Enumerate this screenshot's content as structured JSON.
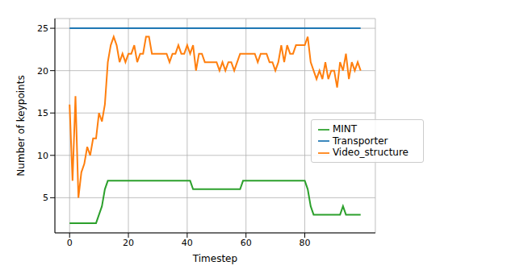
{
  "chart_data": {
    "type": "line",
    "x_label": "Timestep",
    "y_label": "Number of keypoints",
    "x": [
      0,
      1,
      2,
      3,
      4,
      5,
      6,
      7,
      8,
      9,
      10,
      11,
      12,
      13,
      14,
      15,
      16,
      17,
      18,
      19,
      20,
      21,
      22,
      23,
      24,
      25,
      26,
      27,
      28,
      29,
      30,
      31,
      32,
      33,
      34,
      35,
      36,
      37,
      38,
      39,
      40,
      41,
      42,
      43,
      44,
      45,
      46,
      47,
      48,
      49,
      50,
      51,
      52,
      53,
      54,
      55,
      56,
      57,
      58,
      59,
      60,
      61,
      62,
      63,
      64,
      65,
      66,
      67,
      68,
      69,
      70,
      71,
      72,
      73,
      74,
      75,
      76,
      77,
      78,
      79,
      80,
      81,
      82,
      83,
      84,
      85,
      86,
      87,
      88,
      89,
      90,
      91,
      92,
      93,
      94,
      95,
      96,
      97,
      98,
      99
    ],
    "series": [
      {
        "name": "Transporter",
        "color": "#1f77b4",
        "values": [
          25,
          25,
          25,
          25,
          25,
          25,
          25,
          25,
          25,
          25,
          25,
          25,
          25,
          25,
          25,
          25,
          25,
          25,
          25,
          25,
          25,
          25,
          25,
          25,
          25,
          25,
          25,
          25,
          25,
          25,
          25,
          25,
          25,
          25,
          25,
          25,
          25,
          25,
          25,
          25,
          25,
          25,
          25,
          25,
          25,
          25,
          25,
          25,
          25,
          25,
          25,
          25,
          25,
          25,
          25,
          25,
          25,
          25,
          25,
          25,
          25,
          25,
          25,
          25,
          25,
          25,
          25,
          25,
          25,
          25,
          25,
          25,
          25,
          25,
          25,
          25,
          25,
          25,
          25,
          25,
          25,
          25,
          25,
          25,
          25,
          25,
          25,
          25,
          25,
          25,
          25,
          25,
          25,
          25,
          25,
          25,
          25,
          25,
          25,
          25
        ]
      },
      {
        "name": "Video_structure",
        "color": "#ff7f0e",
        "values": [
          16,
          7,
          17,
          5,
          8,
          9,
          11,
          10,
          12,
          12,
          15,
          14,
          16,
          21,
          23,
          24,
          23,
          21,
          22,
          21,
          22,
          22,
          23,
          21,
          22,
          22,
          24,
          24,
          22,
          22,
          22,
          22,
          22,
          22,
          21,
          22,
          22,
          23,
          22,
          22,
          23,
          22,
          23,
          20,
          22,
          22,
          21,
          21,
          21,
          21,
          21,
          20,
          21,
          20,
          21,
          21,
          20,
          21,
          22,
          22,
          22,
          22,
          22,
          22,
          21,
          22,
          22,
          22,
          21,
          21,
          20,
          21,
          23,
          21,
          23,
          22,
          22,
          23,
          23,
          23,
          23,
          24,
          21,
          20,
          19,
          20,
          19,
          21,
          19,
          20,
          20,
          18,
          21,
          20,
          22,
          19,
          21,
          20,
          21,
          20
        ]
      },
      {
        "name": "MINT",
        "color": "#2ca02c",
        "values": [
          2,
          2,
          2,
          2,
          2,
          2,
          2,
          2,
          2,
          2,
          3,
          4,
          6,
          7,
          7,
          7,
          7,
          7,
          7,
          7,
          7,
          7,
          7,
          7,
          7,
          7,
          7,
          7,
          7,
          7,
          7,
          7,
          7,
          7,
          7,
          7,
          7,
          7,
          7,
          7,
          7,
          7,
          6,
          6,
          6,
          6,
          6,
          6,
          6,
          6,
          6,
          6,
          6,
          6,
          6,
          6,
          6,
          6,
          6,
          7,
          7,
          7,
          7,
          7,
          7,
          7,
          7,
          7,
          7,
          7,
          7,
          7,
          7,
          7,
          7,
          7,
          7,
          7,
          7,
          7,
          7,
          6,
          4,
          3,
          3,
          3,
          3,
          3,
          3,
          3,
          3,
          3,
          3,
          4,
          3,
          3,
          3,
          3,
          3,
          3
        ]
      }
    ],
    "xlim": [
      -5,
      104
    ],
    "xticks": [
      0,
      20,
      40,
      60,
      80
    ],
    "ylim": [
      0.85,
      26.15
    ],
    "yticks": [
      5,
      10,
      15,
      20,
      25
    ],
    "grid": true,
    "legend": "center right"
  }
}
